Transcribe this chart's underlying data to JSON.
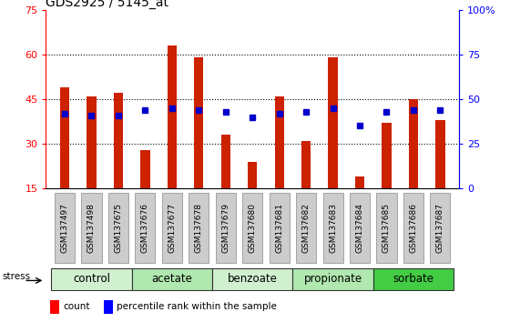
{
  "title": "GDS2925 / 5145_at",
  "samples": [
    "GSM137497",
    "GSM137498",
    "GSM137675",
    "GSM137676",
    "GSM137677",
    "GSM137678",
    "GSM137679",
    "GSM137680",
    "GSM137681",
    "GSM137682",
    "GSM137683",
    "GSM137684",
    "GSM137685",
    "GSM137686",
    "GSM137687"
  ],
  "counts": [
    49,
    46,
    47,
    28,
    63,
    59,
    33,
    24,
    46,
    31,
    59,
    19,
    37,
    45,
    38
  ],
  "percentile": [
    42,
    41,
    41,
    44,
    45,
    44,
    43,
    40,
    42,
    43,
    45,
    35,
    43,
    44,
    44
  ],
  "bar_bottom": 15,
  "ylim_left": [
    15,
    75
  ],
  "ylim_right": [
    0,
    100
  ],
  "yticks_left": [
    15,
    30,
    45,
    60,
    75
  ],
  "yticks_right": [
    0,
    25,
    50,
    75,
    100
  ],
  "groups": [
    {
      "label": "control",
      "start": 0,
      "end": 3,
      "color": "#d0f0d0"
    },
    {
      "label": "acetate",
      "start": 3,
      "end": 6,
      "color": "#b0e8b0"
    },
    {
      "label": "benzoate",
      "start": 6,
      "end": 9,
      "color": "#d0f0d0"
    },
    {
      "label": "propionate",
      "start": 9,
      "end": 12,
      "color": "#b0e8b0"
    },
    {
      "label": "sorbate",
      "start": 12,
      "end": 15,
      "color": "#44cc44"
    }
  ],
  "bar_color": "#cc2200",
  "dot_color": "#0000cc",
  "background_color": "#ffffff",
  "tick_label_bg": "#cccccc",
  "legend_count_label": "count",
  "legend_pct_label": "percentile rank within the sample",
  "title_fontsize": 10,
  "tick_fontsize": 6.5,
  "group_fontsize": 8.5
}
